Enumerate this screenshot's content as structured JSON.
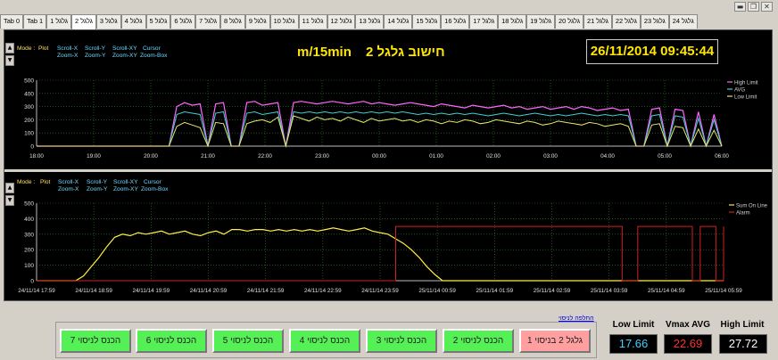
{
  "window": {
    "min_label": "▬",
    "max_label": "❐",
    "close_label": "✕"
  },
  "tabs": [
    "Tab 0",
    "Tab 1",
    "גלגל 1",
    "גלגל 2",
    "גלגל 3",
    "גלגל 4",
    "גלגל 5",
    "גלגל 6",
    "גלגל 7",
    "גלגל 8",
    "גלגל 9",
    "גלגל 10",
    "גלגל 11",
    "גלגל 12",
    "גלגל 13",
    "גלגל 14",
    "גלגל 15",
    "גלגל 16",
    "גלגל 17",
    "גלגל 18",
    "גלגל 19",
    "גלגל 20",
    "גלגל 21",
    "גלגל 22",
    "גלגל 23",
    "גלגל 24"
  ],
  "active_tab": 3,
  "side_buttons": {
    "up": "▲",
    "down": "▼"
  },
  "modes": {
    "mode_label": "Mode :",
    "plot": "Plot",
    "scroll_x": "Scroll-X",
    "scroll_y": "Scroll-Y",
    "scroll_xy": "Scroll-XY",
    "cursor": "Cursor",
    "zoom_x": "Zoom-X",
    "zoom_y": "Zoom-Y",
    "zoom_xy": "Zoom-XY",
    "zoom_box": "Zoom-Box"
  },
  "header": {
    "unit": "m/15min",
    "title": "חישוב גלגל 2",
    "datetime": "26/11/2014   09:45:44"
  },
  "colors": {
    "high_limit": "#ff66ff",
    "avg": "#40d0d0",
    "low_limit": "#e8e86a",
    "sum_online": "#ffee44",
    "alarm": "#d02020",
    "grid": "#2a8a2a"
  },
  "chart_data": [
    {
      "type": "line",
      "ylim": [
        0,
        500
      ],
      "y_ticks": [
        "0",
        "100",
        "200",
        "300",
        "400",
        "500"
      ],
      "x_ticks": [
        "18:00",
        "19:00",
        "20:00",
        "21:00",
        "22:00",
        "23:00",
        "00:00",
        "01:00",
        "02:00",
        "03:00",
        "04:00",
        "05:00",
        "06:00"
      ],
      "legend_position": "top-right",
      "series": [
        {
          "name": "High Limit",
          "values": [
            0,
            0,
            0,
            0,
            0,
            0,
            0,
            0,
            0,
            0,
            0,
            0,
            0,
            0,
            0,
            0,
            0,
            0,
            300,
            330,
            310,
            320,
            0,
            320,
            330,
            0,
            0,
            330,
            340,
            310,
            320,
            330,
            0,
            330,
            340,
            330,
            320,
            330,
            340,
            330,
            320,
            330,
            340,
            320,
            330,
            320,
            310,
            320,
            330,
            320,
            310,
            300,
            320,
            310,
            300,
            290,
            310,
            300,
            290,
            300,
            310,
            290,
            300,
            280,
            290,
            300,
            280,
            290,
            300,
            280,
            300,
            290,
            270,
            280,
            290,
            270,
            280,
            0,
            0,
            280,
            290,
            0,
            280,
            270,
            0,
            260,
            0,
            240,
            0
          ]
        },
        {
          "name": "AVG",
          "values": [
            0,
            0,
            0,
            0,
            0,
            0,
            0,
            0,
            0,
            0,
            0,
            0,
            0,
            0,
            0,
            0,
            0,
            0,
            240,
            260,
            250,
            240,
            0,
            250,
            260,
            0,
            0,
            250,
            260,
            240,
            250,
            260,
            0,
            260,
            250,
            260,
            250,
            260,
            250,
            260,
            250,
            260,
            250,
            260,
            250,
            260,
            250,
            260,
            250,
            240,
            250,
            240,
            250,
            240,
            250,
            240,
            250,
            240,
            230,
            240,
            250,
            240,
            230,
            240,
            250,
            240,
            230,
            240,
            230,
            240,
            250,
            240,
            230,
            240,
            230,
            240,
            230,
            0,
            0,
            230,
            240,
            0,
            230,
            220,
            0,
            210,
            0,
            200,
            0
          ]
        },
        {
          "name": "Low Limit",
          "values": [
            0,
            0,
            0,
            0,
            0,
            0,
            0,
            0,
            0,
            0,
            0,
            0,
            0,
            0,
            0,
            0,
            0,
            0,
            150,
            180,
            160,
            140,
            0,
            180,
            170,
            0,
            0,
            170,
            190,
            200,
            180,
            220,
            0,
            230,
            210,
            190,
            220,
            200,
            210,
            190,
            220,
            200,
            180,
            210,
            190,
            200,
            210,
            190,
            200,
            180,
            200,
            190,
            170,
            190,
            180,
            200,
            190,
            170,
            180,
            200,
            190,
            180,
            170,
            190,
            180,
            160,
            170,
            190,
            180,
            170,
            160,
            180,
            170,
            150,
            160,
            170,
            150,
            0,
            0,
            160,
            170,
            0,
            150,
            140,
            0,
            130,
            0,
            120,
            0
          ]
        }
      ]
    },
    {
      "type": "line",
      "ylim": [
        0,
        500
      ],
      "y_ticks": [
        "0",
        "100",
        "200",
        "300",
        "400",
        "500"
      ],
      "x_ticks": [
        "24/11/14 17:59",
        "24/11/14 18:59",
        "24/11/14 19:59",
        "24/11/14 20:59",
        "24/11/14 21:59",
        "24/11/14 22:59",
        "24/11/14 23:59",
        "25/11/14 00:59",
        "25/11/14 01:59",
        "25/11/14 02:59",
        "25/11/14 03:59",
        "25/11/14 04:59",
        "25/11/14 05:59"
      ],
      "legend_position": "top-right",
      "series": [
        {
          "name": "Sum On Line",
          "values": [
            0,
            0,
            0,
            0,
            0,
            0,
            30,
            90,
            150,
            220,
            280,
            300,
            290,
            310,
            300,
            310,
            320,
            300,
            310,
            320,
            300,
            290,
            310,
            320,
            300,
            330,
            330,
            320,
            330,
            330,
            320,
            330,
            320,
            330,
            320,
            330,
            320,
            330,
            340,
            330,
            320,
            330,
            340,
            320,
            310,
            300,
            270,
            240,
            200,
            150,
            90,
            40,
            0,
            0,
            0,
            0,
            0,
            0,
            0,
            0,
            0,
            0,
            0,
            0,
            0,
            0,
            0,
            0,
            0,
            0,
            0,
            0,
            0,
            0,
            0,
            0,
            0,
            0,
            0,
            0,
            0,
            0,
            0,
            0,
            0,
            0,
            0,
            0,
            0
          ]
        },
        {
          "name": "Alarm",
          "values": [
            0,
            0,
            0,
            0,
            0,
            0,
            0,
            0,
            0,
            0,
            0,
            0,
            0,
            0,
            0,
            0,
            0,
            0,
            0,
            0,
            0,
            0,
            0,
            0,
            0,
            0,
            0,
            0,
            0,
            0,
            0,
            0,
            0,
            0,
            0,
            0,
            0,
            0,
            0,
            0,
            0,
            0,
            0,
            0,
            0,
            0,
            350,
            350,
            350,
            350,
            350,
            350,
            350,
            350,
            350,
            350,
            350,
            350,
            350,
            350,
            350,
            350,
            350,
            350,
            350,
            350,
            350,
            350,
            350,
            350,
            350,
            350,
            350,
            350,
            350,
            0,
            0,
            350,
            350,
            350,
            350,
            350,
            350,
            350,
            0,
            350,
            350,
            0,
            350
          ]
        }
      ]
    }
  ],
  "bottom": {
    "link": "החלפה לניסוי",
    "buttons": [
      {
        "label": "גלגל 2 בניסוי 1",
        "state": "active"
      },
      {
        "label": "הכנס לניסוי 2",
        "state": "ready"
      },
      {
        "label": "הכנס לניסוי 3",
        "state": "ready"
      },
      {
        "label": "הכנס לניסוי 4",
        "state": "ready"
      },
      {
        "label": "הכנס לניסוי 5",
        "state": "ready"
      },
      {
        "label": "הכנס לניסוי 6",
        "state": "ready"
      },
      {
        "label": "הכנס לניסוי 7",
        "state": "ready"
      }
    ],
    "stats": [
      {
        "label": "Low Limit",
        "value": "17.66",
        "color": "#40d0ff"
      },
      {
        "label": "Vmax AVG",
        "value": "22.69",
        "color": "#ff3030"
      },
      {
        "label": "High Limit",
        "value": "27.72",
        "color": "#ffffff"
      }
    ]
  }
}
